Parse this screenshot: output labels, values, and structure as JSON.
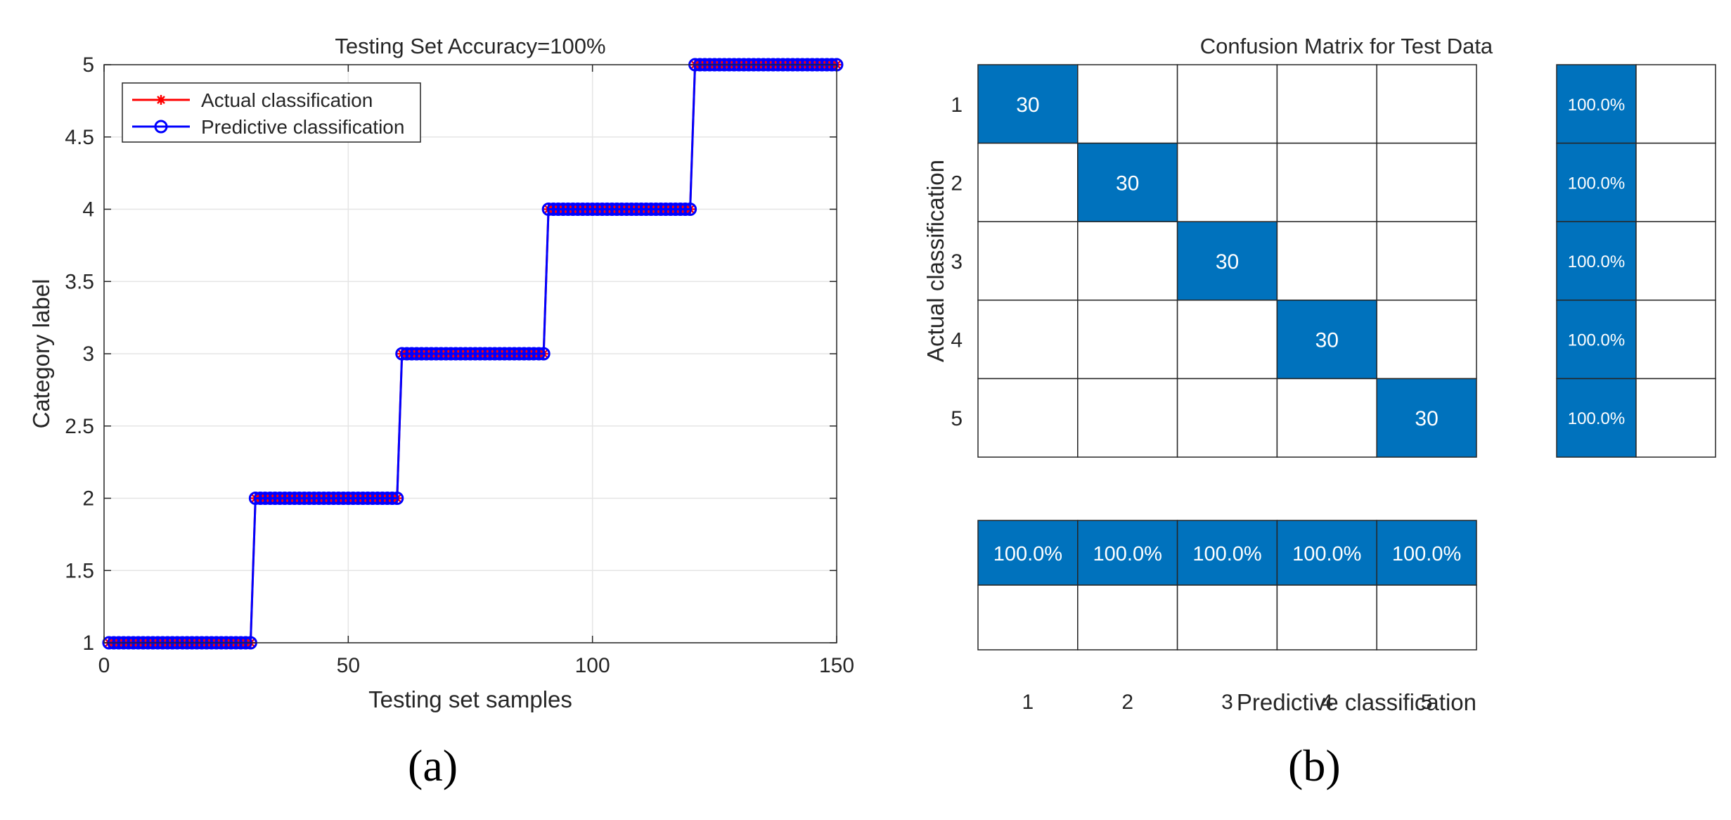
{
  "panels": {
    "a_label": "(a)",
    "b_label": "(b)"
  },
  "chart_data": [
    {
      "type": "line",
      "title": "Testing Set Accuracy=100%",
      "xlabel": "Testing set samples",
      "ylabel": "Category label",
      "xlim": [
        0,
        150
      ],
      "ylim": [
        1,
        5
      ],
      "xticks": [
        0,
        50,
        100,
        150
      ],
      "yticks": [
        1,
        1.5,
        2,
        2.5,
        3,
        3.5,
        4,
        4.5,
        5
      ],
      "grid": true,
      "legend_position": "top-left",
      "colors": {
        "actual": "#ff0000",
        "predicted": "#0000ff"
      },
      "series": [
        {
          "name": "Actual classification",
          "marker": "asterisk",
          "segments": [
            {
              "from": 1,
              "to": 30,
              "value": 1
            },
            {
              "from": 31,
              "to": 60,
              "value": 2
            },
            {
              "from": 61,
              "to": 90,
              "value": 3
            },
            {
              "from": 91,
              "to": 120,
              "value": 4
            },
            {
              "from": 121,
              "to": 150,
              "value": 5
            }
          ]
        },
        {
          "name": "Predictive classification",
          "marker": "circle",
          "segments": [
            {
              "from": 1,
              "to": 30,
              "value": 1
            },
            {
              "from": 31,
              "to": 60,
              "value": 2
            },
            {
              "from": 61,
              "to": 90,
              "value": 3
            },
            {
              "from": 91,
              "to": 120,
              "value": 4
            },
            {
              "from": 121,
              "to": 150,
              "value": 5
            }
          ]
        }
      ]
    },
    {
      "type": "heatmap",
      "title": "Confusion Matrix for Test Data",
      "xlabel": "Predictive classification",
      "ylabel": "Actual classification",
      "classes": [
        "1",
        "2",
        "3",
        "4",
        "5"
      ],
      "fill_color": "#0072bd",
      "matrix": [
        [
          30,
          0,
          0,
          0,
          0
        ],
        [
          0,
          30,
          0,
          0,
          0
        ],
        [
          0,
          0,
          30,
          0,
          0
        ],
        [
          0,
          0,
          0,
          30,
          0
        ],
        [
          0,
          0,
          0,
          0,
          30
        ]
      ],
      "row_summary": [
        "100.0%",
        "100.0%",
        "100.0%",
        "100.0%",
        "100.0%"
      ],
      "column_summary": [
        "100.0%",
        "100.0%",
        "100.0%",
        "100.0%",
        "100.0%"
      ]
    }
  ]
}
